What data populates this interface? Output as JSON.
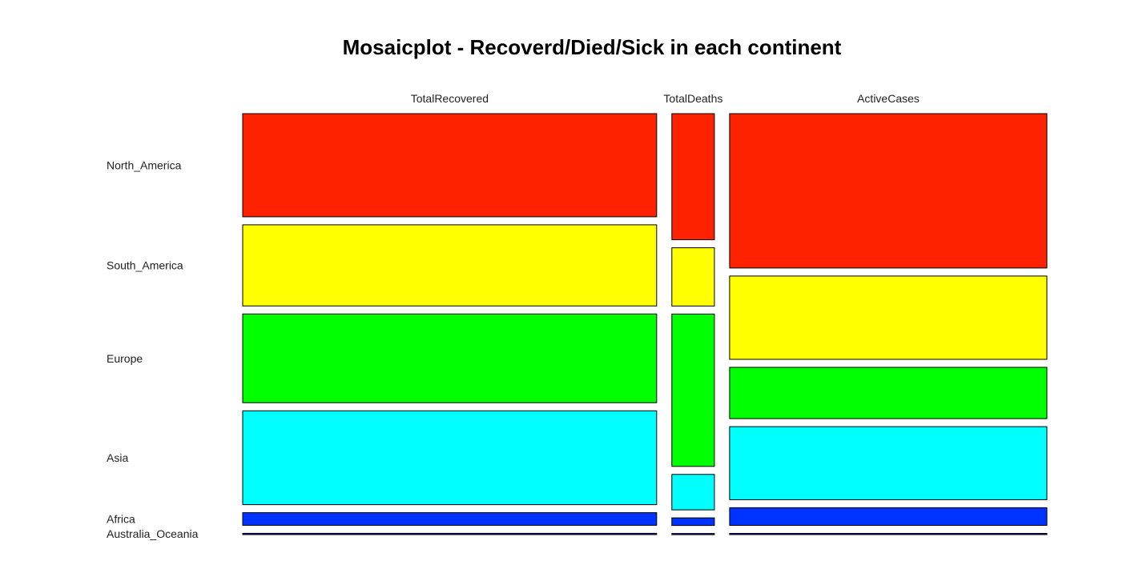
{
  "chart_data": {
    "type": "mosaic",
    "title": "Mosaicplot - Recoverd/Died/Sick in each continent",
    "columns": [
      {
        "name": "TotalRecovered",
        "share": 0.535
      },
      {
        "name": "TotalDeaths",
        "share": 0.055
      },
      {
        "name": "ActiveCases",
        "share": 0.41
      }
    ],
    "rows": [
      "North_America",
      "South_America",
      "Europe",
      "Asia",
      "Africa",
      "Australia_Oceania"
    ],
    "row_label_anchor": "TotalRecovered",
    "colors": {
      "North_America": "#ff2200",
      "South_America": "#ffff00",
      "Europe": "#00ff00",
      "Asia": "#00ffff",
      "Africa": "#0033ff",
      "Australia_Oceania": "#0a0ad8"
    },
    "proportions": {
      "TotalRecovered": [
        0.244,
        0.192,
        0.21,
        0.222,
        0.03,
        0.003
      ],
      "TotalDeaths": [
        0.331,
        0.153,
        0.4,
        0.093,
        0.02,
        0.003
      ],
      "ActiveCases": [
        0.376,
        0.203,
        0.125,
        0.178,
        0.043,
        0.003
      ]
    }
  }
}
